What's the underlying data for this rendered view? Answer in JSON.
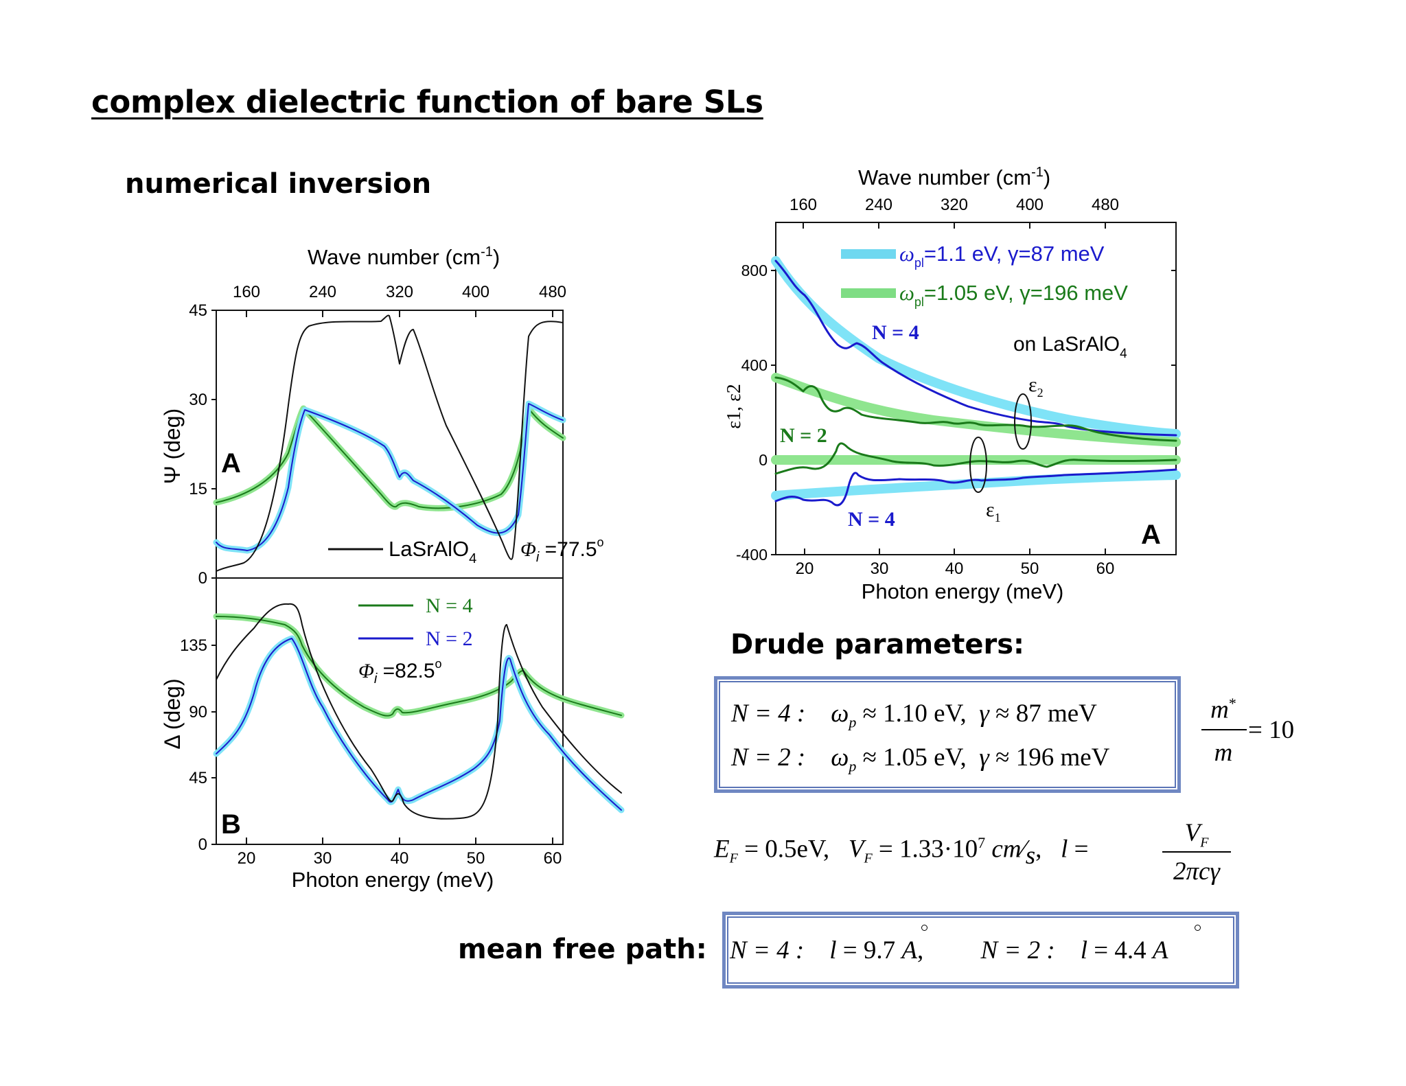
{
  "title": "complex dielectric function of bare SLs",
  "headings": {
    "numerical_inversion": "numerical inversion",
    "drude": "Drude parameters:",
    "mean_free_path": "mean free path:"
  },
  "left_figure": {
    "top_axis_title": "Wave number (cm",
    "top_axis_title_sup": "-1",
    "top_axis_title_end": ")",
    "top_ticks": [
      "160",
      "240",
      "320",
      "400",
      "480"
    ],
    "bottom_ticks": [
      "20",
      "30",
      "40",
      "50",
      "60"
    ],
    "xlabel": "Photon energy (meV)",
    "panel_a": {
      "letter": "A",
      "ylabel": "Ψ (deg)",
      "yticks": [
        "0",
        "15",
        "30",
        "45"
      ],
      "legend_label": "LaSrAlO",
      "legend_sub": "4",
      "angle_symbol": "Φ",
      "angle_sub": "i",
      "angle_value": " =77.5",
      "angle_deg": "o"
    },
    "panel_b": {
      "letter": "B",
      "ylabel": "Δ (deg)",
      "yticks": [
        "0",
        "45",
        "90",
        "135"
      ],
      "legend": [
        "N = 4",
        "N = 2"
      ],
      "angle_symbol": "Φ",
      "angle_sub": "i",
      "angle_value": " =82.5",
      "angle_deg": "o"
    }
  },
  "right_figure": {
    "top_axis_title": "Wave number (cm",
    "top_axis_title_sup": "-1",
    "top_axis_title_end": ")",
    "top_ticks": [
      "160",
      "240",
      "320",
      "400",
      "480"
    ],
    "bottom_ticks": [
      "20",
      "30",
      "40",
      "50",
      "60"
    ],
    "xlabel": "Photon energy (meV)",
    "ylabel": "ε1, ε2",
    "yticks": [
      "-400",
      "0",
      "400",
      "800"
    ],
    "legend": [
      {
        "omega": "ω",
        "sub": "pl",
        "text": "=1.1 eV, γ=87 meV",
        "color": "#6fd8f0"
      },
      {
        "omega": "ω",
        "sub": "pl",
        "text": "=1.05 eV, γ=196 meV",
        "color": "#7fdd84"
      }
    ],
    "substrate": "on LaSrAlO",
    "substrate_sub": "4",
    "n4_label": "N = 4",
    "n2_label": "N = 2",
    "eps2": "ε",
    "eps2_sub": "2",
    "eps1": "ε",
    "eps1_sub": "1",
    "letter": "A"
  },
  "drude_box": {
    "row1": {
      "n": "N = 4 :",
      "wp": "1.10 eV",
      "gamma": "87 meV"
    },
    "row2": {
      "n": "N = 2 :",
      "wp": "1.05 eV",
      "gamma": "196 meV"
    }
  },
  "mass_ratio": {
    "num": "m",
    "star": "*",
    "den": "m",
    "value": "= 10"
  },
  "fermi": {
    "ef": "0.5eV",
    "vf": "1.33·10",
    "vf_exp": "7",
    "unit_num": "cm",
    "unit_den": "s",
    "l_num": "V",
    "l_num_sub": "F",
    "l_den": "2πcγ"
  },
  "mean_free_path_box": {
    "n4": "N = 4 :",
    "l4": "9.7",
    "n2": "N = 2 :",
    "l2": "4.4",
    "unit": "A"
  },
  "colors": {
    "black": "#111111",
    "blue": "#1a1acc",
    "green": "#1a7a1a",
    "light_blue": "#7fe3f7",
    "light_green": "#8fe58f",
    "box_border": "#6f87c2"
  }
}
